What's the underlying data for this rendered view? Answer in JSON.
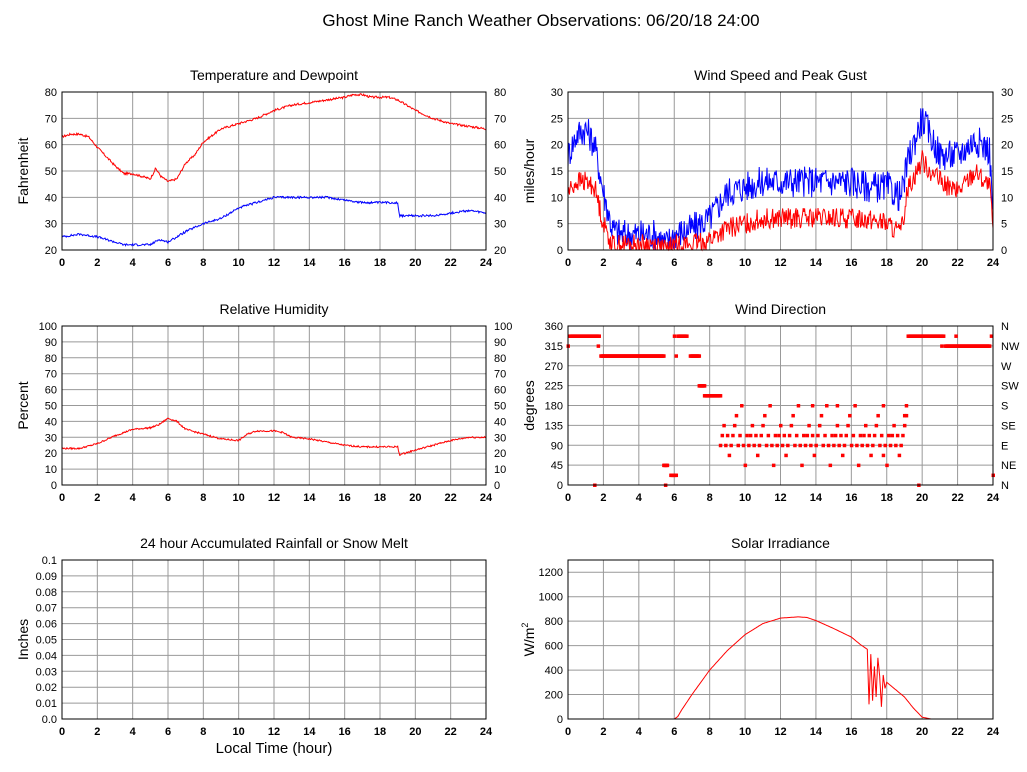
{
  "page": {
    "title": "Ghost Mine Ranch Weather Observations: 06/20/18 24:00"
  },
  "colors": {
    "red": "#ff0000",
    "blue": "#0000ff",
    "grid": "#999999",
    "axis": "#000000"
  },
  "shared": {
    "x_label": "Local Time (hour)"
  },
  "chart_data": [
    {
      "id": "temp",
      "type": "line",
      "title": "Temperature and Dewpoint",
      "ylabel": "Fahrenheit",
      "xlabel": "",
      "xlim": [
        0,
        24
      ],
      "ylim": [
        20,
        80
      ],
      "xticks": [
        0,
        2,
        4,
        6,
        8,
        10,
        12,
        14,
        16,
        18,
        20,
        22,
        24
      ],
      "yticks": [
        20,
        30,
        40,
        50,
        60,
        70,
        80
      ],
      "right_ticks": [
        "20",
        "30",
        "40",
        "50",
        "60",
        "70",
        "80"
      ],
      "grid": true,
      "series": [
        {
          "color": "red",
          "noise": 0.4,
          "x": [
            0,
            0.5,
            1,
            1.5,
            2,
            3,
            3.5,
            4,
            4.5,
            5,
            5.3,
            5.6,
            6,
            6.5,
            7,
            7.5,
            8,
            9,
            10,
            11,
            12,
            13,
            14,
            15,
            16,
            16.5,
            17,
            17.5,
            18,
            18.5,
            19,
            20,
            21,
            22,
            23,
            24
          ],
          "values": [
            63,
            64,
            64,
            63,
            59,
            52,
            49,
            49,
            48,
            47,
            51,
            48,
            46,
            47,
            53,
            56,
            61,
            66,
            68,
            70,
            73,
            75,
            76,
            77,
            78,
            79,
            79,
            78,
            78,
            78,
            77,
            73,
            70,
            68,
            67,
            66
          ]
        },
        {
          "color": "blue",
          "noise": 0.4,
          "x": [
            0,
            1,
            2,
            3,
            3.5,
            4,
            4.5,
            5,
            5.5,
            6,
            6.5,
            7,
            8,
            9,
            10,
            11,
            12,
            13,
            14,
            15,
            16,
            17,
            18,
            19,
            19.1,
            20,
            21,
            22,
            23,
            24
          ],
          "values": [
            25,
            26,
            25,
            23,
            22,
            22,
            22,
            22,
            24,
            23,
            25,
            27,
            30,
            32,
            36,
            38,
            40,
            40,
            40,
            40,
            39,
            38,
            38,
            38,
            33,
            33,
            33,
            34,
            35,
            34
          ]
        }
      ]
    },
    {
      "id": "wind",
      "type": "line",
      "title": "Wind Speed and Peak Gust",
      "ylabel": "miles/hour",
      "xlabel": "",
      "xlim": [
        0,
        24
      ],
      "ylim": [
        0,
        30
      ],
      "xticks": [
        0,
        2,
        4,
        6,
        8,
        10,
        12,
        14,
        16,
        18,
        20,
        22,
        24
      ],
      "yticks": [
        0,
        5,
        10,
        15,
        20,
        25,
        30
      ],
      "right_ticks": [
        "0",
        "5",
        "10",
        "15",
        "20",
        "25",
        "30"
      ],
      "grid": true,
      "series": [
        {
          "color": "blue",
          "noise": 3,
          "x": [
            0,
            0.5,
            1,
            1.5,
            2,
            2.5,
            3,
            4,
            5,
            5.5,
            6,
            7,
            8,
            9,
            10,
            11,
            12,
            13,
            14,
            15,
            16,
            17,
            18,
            18.8,
            19.2,
            20,
            21,
            22,
            23,
            23.8,
            24
          ],
          "values": [
            18,
            22,
            23,
            20,
            11,
            4,
            3,
            3,
            3,
            1,
            3,
            4,
            6,
            11,
            12,
            13,
            13,
            13,
            13,
            13,
            13,
            12,
            12,
            10,
            17,
            25,
            18,
            18,
            21,
            19,
            7
          ]
        },
        {
          "color": "red",
          "noise": 2,
          "x": [
            0,
            0.5,
            1,
            1.5,
            2,
            2.5,
            3,
            4,
            5,
            5.5,
            6,
            7,
            8,
            9,
            10,
            11,
            12,
            13,
            14,
            15,
            16,
            17,
            18,
            18.8,
            19.2,
            20,
            21,
            22,
            23,
            23.8,
            24
          ],
          "values": [
            11,
            13,
            13,
            12,
            5,
            1,
            1,
            1,
            1,
            0,
            1,
            1,
            2,
            4,
            5,
            6,
            6,
            6,
            6,
            6,
            6,
            6,
            5,
            3,
            12,
            17,
            13,
            11,
            15,
            12,
            4
          ]
        }
      ]
    },
    {
      "id": "rh",
      "type": "line",
      "title": "Relative Humidity",
      "ylabel": "Percent",
      "xlabel": "",
      "xlim": [
        0,
        24
      ],
      "ylim": [
        0,
        100
      ],
      "xticks": [
        0,
        2,
        4,
        6,
        8,
        10,
        12,
        14,
        16,
        18,
        20,
        22,
        24
      ],
      "yticks": [
        0,
        10,
        20,
        30,
        40,
        50,
        60,
        70,
        80,
        90,
        100
      ],
      "right_ticks": [
        "0",
        "10",
        "20",
        "30",
        "40",
        "50",
        "60",
        "70",
        "80",
        "90",
        "100"
      ],
      "grid": true,
      "series": [
        {
          "color": "red",
          "noise": 0.5,
          "x": [
            0,
            1,
            2,
            3,
            4,
            5,
            5.5,
            6,
            6.5,
            7,
            8,
            9,
            10,
            10.5,
            11,
            12,
            12.5,
            13,
            14,
            15,
            16,
            17,
            18,
            19,
            19.1,
            20,
            21,
            22,
            23,
            24
          ],
          "values": [
            23,
            23,
            26,
            31,
            35,
            36,
            38,
            42,
            40,
            35,
            32,
            29,
            28,
            32,
            34,
            34,
            33,
            30,
            29,
            27,
            25,
            24,
            24,
            24,
            19,
            22,
            25,
            28,
            30,
            30
          ]
        }
      ]
    },
    {
      "id": "wdir",
      "type": "scatter",
      "title": "Wind Direction",
      "ylabel": "degrees",
      "xlabel": "",
      "xlim": [
        0,
        24
      ],
      "ylim": [
        0,
        360
      ],
      "xticks": [
        0,
        2,
        4,
        6,
        8,
        10,
        12,
        14,
        16,
        18,
        20,
        22,
        24
      ],
      "yticks": [
        0,
        45,
        90,
        135,
        180,
        225,
        270,
        315,
        360
      ],
      "right_ticks": [
        "N",
        "NE",
        "E",
        "SE",
        "S",
        "SW",
        "W",
        "NW",
        "N"
      ],
      "grid": true,
      "series": [
        {
          "color": "red",
          "segments": [
            {
              "x0": 0.1,
              "x1": 1.75,
              "values": [
                337.5
              ],
              "step": 0.05
            },
            {
              "x0": 1.85,
              "x1": 5.4,
              "values": [
                292.5
              ],
              "step": 0.05
            },
            {
              "x0": 5.4,
              "x1": 5.6,
              "values": [
                45
              ],
              "step": 0.05
            },
            {
              "x0": 5.8,
              "x1": 6.1,
              "values": [
                22.5
              ],
              "step": 0.05
            },
            {
              "x0": 6.2,
              "x1": 6.7,
              "values": [
                337.5
              ],
              "step": 0.05
            },
            {
              "x0": 6.9,
              "x1": 7.4,
              "values": [
                292.5
              ],
              "step": 0.05
            },
            {
              "x0": 7.4,
              "x1": 7.7,
              "values": [
                225
              ],
              "step": 0.05
            },
            {
              "x0": 7.7,
              "x1": 8.6,
              "values": [
                202.5
              ],
              "step": 0.05
            },
            {
              "x0": 8.6,
              "x1": 19.1,
              "values": [
                90,
                112.5,
                135,
                90,
                112.5,
                67.5,
                90,
                112.5,
                135,
                157.5,
                90,
                112.5,
                180,
                90,
                45,
                112.5
              ],
              "step": 0.1
            },
            {
              "x0": 19.2,
              "x1": 21.2,
              "values": [
                337.5
              ],
              "step": 0.05
            },
            {
              "x0": 21.3,
              "x1": 23.8,
              "values": [
                315
              ],
              "step": 0.05
            }
          ],
          "points": [
            [
              0,
              315
            ],
            [
              1.5,
              0
            ],
            [
              1.7,
              315
            ],
            [
              5.5,
              0
            ],
            [
              6,
              337.5
            ],
            [
              6.1,
              292.5
            ],
            [
              13.8,
              180
            ],
            [
              15.2,
              180
            ],
            [
              17.8,
              67.5
            ],
            [
              19,
              157.5
            ],
            [
              19.1,
              180
            ],
            [
              19.8,
              0
            ],
            [
              21.1,
              315
            ],
            [
              21.9,
              337.5
            ],
            [
              23.9,
              337.5
            ],
            [
              24,
              22.5
            ]
          ]
        }
      ]
    },
    {
      "id": "rain",
      "type": "line",
      "title": "24 hour Accumulated Rainfall or Snow Melt",
      "ylabel": "Inches",
      "xlabel": "Local Time (hour)",
      "xlim": [
        0,
        24
      ],
      "ylim": [
        0,
        0.1
      ],
      "xticks": [
        0,
        2,
        4,
        6,
        8,
        10,
        12,
        14,
        16,
        18,
        20,
        22,
        24
      ],
      "yticks": [
        0,
        0.01,
        0.02,
        0.03,
        0.04,
        0.05,
        0.06,
        0.07,
        0.08,
        0.09,
        0.1
      ],
      "ytick_labels": [
        "0.0",
        "0.01",
        "0.02",
        "0.03",
        "0.04",
        "0.05",
        "0.06",
        "0.07",
        "0.08",
        "0.09",
        "0.1"
      ],
      "grid": true,
      "series": [
        {
          "color": "red",
          "noise": 0,
          "x": [
            0,
            24
          ],
          "values": [
            0,
            0
          ]
        }
      ]
    },
    {
      "id": "solar",
      "type": "line",
      "title": "Solar Irradiance",
      "ylabel": "W/m",
      "ylabel_sup": "2",
      "xlabel": "",
      "xlim": [
        0,
        24
      ],
      "ylim": [
        0,
        1300
      ],
      "xticks": [
        0,
        2,
        4,
        6,
        8,
        10,
        12,
        14,
        16,
        18,
        20,
        22,
        24
      ],
      "yticks": [
        0,
        200,
        400,
        600,
        800,
        1000,
        1200
      ],
      "grid": true,
      "series": [
        {
          "color": "red",
          "noise": 0,
          "x": [
            0,
            6,
            6.2,
            6.4,
            7,
            8,
            9,
            10,
            11,
            12,
            13,
            13.5,
            14,
            15,
            16,
            16.5,
            16.9,
            17,
            17.1,
            17.2,
            17.3,
            17.4,
            17.5,
            17.6,
            17.7,
            17.8,
            17.9,
            18,
            18.5,
            19,
            19.5,
            20,
            20.5,
            21,
            24
          ],
          "values": [
            0,
            0,
            20,
            70,
            200,
            400,
            560,
            690,
            780,
            825,
            835,
            830,
            805,
            740,
            670,
            610,
            570,
            120,
            530,
            150,
            430,
            180,
            500,
            350,
            100,
            360,
            250,
            300,
            240,
            180,
            90,
            15,
            0,
            0,
            0
          ]
        }
      ]
    }
  ]
}
